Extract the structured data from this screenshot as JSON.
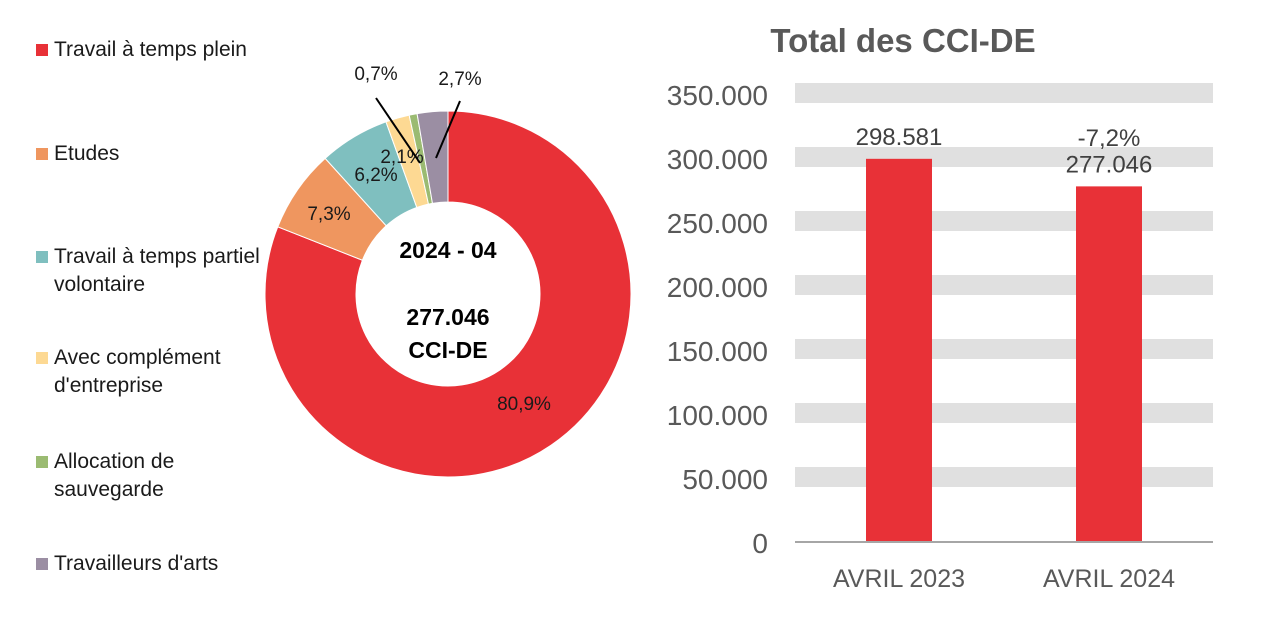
{
  "chart_data": [
    {
      "type": "pie",
      "variant": "donut",
      "center_label": {
        "period": "2024 - 04",
        "total": "277.046",
        "unit": "CCI-DE"
      },
      "legend_position": "left",
      "slices": [
        {
          "name": "Travail à temps plein",
          "value": 80.9,
          "label": "80,9%",
          "color": "#E83137"
        },
        {
          "name": "Etudes",
          "value": 7.3,
          "label": "7,3%",
          "color": "#EF965F"
        },
        {
          "name": "Travail à temps partiel volontaire",
          "value": 6.2,
          "label": "6,2%",
          "color": "#7FBFBF"
        },
        {
          "name": "Avec complément d'entreprise",
          "value": 2.1,
          "label": "2,1%",
          "color": "#FDD993"
        },
        {
          "name": "Allocation de sauvegarde",
          "value": 0.7,
          "label": "0,7%",
          "color": "#9BBB72"
        },
        {
          "name": "Travailleurs d'arts",
          "value": 2.7,
          "label": "2,7%",
          "color": "#9B8EA3"
        }
      ]
    },
    {
      "type": "bar",
      "title": "Total des CCI-DE",
      "categories": [
        "AVRIL 2023",
        "AVRIL 2024"
      ],
      "values": [
        298581,
        277046
      ],
      "data_labels": [
        "298.581",
        "277.046"
      ],
      "change_label": "-7,2%",
      "ylim": [
        0,
        350000
      ],
      "yticks": [
        "0",
        "50.000",
        "100.000",
        "150.000",
        "200.000",
        "250.000",
        "300.000",
        "350.000"
      ],
      "grid": true,
      "color": "#E83137",
      "grid_color": "#E0E0E0"
    }
  ]
}
